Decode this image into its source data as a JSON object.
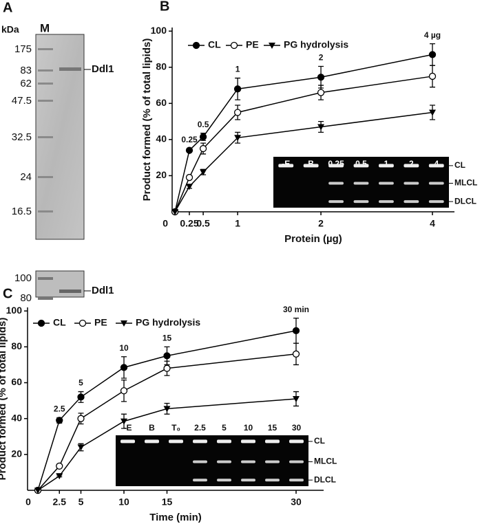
{
  "gel": {
    "panel_label": "A",
    "unit": "kDa",
    "lane": "M",
    "markers": [
      "175",
      "83",
      "62",
      "47.5",
      "32.5",
      "24",
      "16.5"
    ],
    "protein": "Ddl1",
    "blot_markers": [
      "100",
      "80"
    ],
    "blot_protein": "Ddl1"
  },
  "chart_data": [
    {
      "type": "line",
      "panel_label": "B",
      "ylabel": "Product formed (% of total lipids)",
      "xlabel": "Protein (µg)",
      "categories": [
        "0",
        "0.25",
        "0.5",
        "1",
        "2",
        "4"
      ],
      "ylim": [
        0,
        102
      ],
      "yticks": [
        20,
        40,
        60,
        80,
        100
      ],
      "legend": "upper left",
      "series": [
        {
          "name": "CL",
          "color": "#000000",
          "marker": "filled-circle",
          "values": [
            0,
            34,
            41.5,
            68,
            74.5,
            87
          ],
          "errors": [
            null,
            1,
            2,
            6,
            6,
            6
          ]
        },
        {
          "name": "PE",
          "color": "#000000",
          "marker": "open-circle",
          "values": [
            0,
            19,
            35,
            55,
            66,
            75
          ],
          "errors": [
            null,
            1,
            3,
            4,
            4,
            6
          ]
        },
        {
          "name": "PG hydrolysis",
          "color": "#000000",
          "marker": "triangle-down",
          "values": [
            0,
            14,
            22,
            41,
            47,
            55
          ],
          "errors": [
            null,
            1,
            1.5,
            3,
            3,
            4
          ]
        }
      ],
      "annotations": [
        "0.25",
        "0.5",
        "1",
        "2",
        "4 µg"
      ],
      "inset": {
        "lanes": [
          "-E",
          "B",
          "0.25",
          "0.5",
          "1",
          "2",
          "4"
        ],
        "bands": [
          "CL",
          "MLCL",
          "DLCL"
        ]
      }
    },
    {
      "type": "line",
      "panel_label": "C",
      "ylabel": "Product formed (% of total lipids)",
      "xlabel": "Time (min)",
      "x": [
        0,
        2.5,
        5,
        10,
        15,
        30
      ],
      "xlim": [
        -1.2,
        33.2
      ],
      "xticks": [
        0,
        2.5,
        5,
        10,
        15,
        30
      ],
      "ylim": [
        0,
        102
      ],
      "yticks": [
        20,
        40,
        60,
        80,
        100
      ],
      "legend": "upper left",
      "series": [
        {
          "name": "CL",
          "color": "#000000",
          "marker": "filled-circle",
          "values": [
            0,
            39,
            52,
            68.5,
            75,
            89
          ],
          "errors": [
            null,
            1.5,
            3,
            6,
            5,
            7
          ]
        },
        {
          "name": "PE",
          "color": "#000000",
          "marker": "open-circle",
          "values": [
            0,
            13.5,
            40,
            55.5,
            68,
            76
          ],
          "errors": [
            null,
            1,
            3,
            6,
            4,
            6
          ]
        },
        {
          "name": "PG hydrolysis",
          "color": "#000000",
          "marker": "triangle-down",
          "values": [
            0,
            8,
            24,
            38.5,
            45.5,
            51
          ],
          "errors": [
            null,
            0.5,
            2,
            4,
            3,
            4
          ]
        }
      ],
      "annotations": [
        "2.5",
        "5",
        "10",
        "15",
        "30 min"
      ],
      "inset": {
        "lanes": [
          "-E",
          "B",
          "T₀",
          "2.5",
          "5",
          "10",
          "15",
          "30"
        ],
        "bands": [
          "CL",
          "MLCL",
          "DLCL"
        ]
      }
    }
  ]
}
